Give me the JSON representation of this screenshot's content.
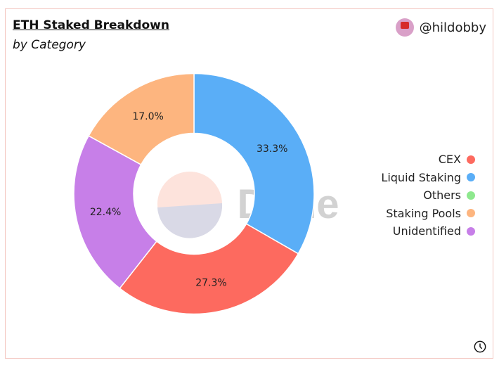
{
  "header": {
    "title": "ETH Staked Breakdown",
    "subtitle": "by Category",
    "author": "@hildobby"
  },
  "watermark": "Dune",
  "chart_data": {
    "type": "pie",
    "donut": true,
    "title": "ETH Staked Breakdown",
    "subtitle": "by Category",
    "legend_position": "right",
    "categories": [
      "CEX",
      "Liquid Staking",
      "Others",
      "Staking Pools",
      "Unidentified"
    ],
    "slices": [
      {
        "name": "Liquid Staking",
        "value": 33.3,
        "label": "33.3%",
        "color": "#5aaef7"
      },
      {
        "name": "CEX",
        "value": 27.3,
        "label": "27.3%",
        "color": "#fd6a5f"
      },
      {
        "name": "Unidentified",
        "value": 22.4,
        "label": "22.4%",
        "color": "#c77fe8"
      },
      {
        "name": "Staking Pools",
        "value": 17.0,
        "label": "17.0%",
        "color": "#fdb57f"
      },
      {
        "name": "Others",
        "value": 0.0,
        "label": "",
        "color": "#8ee88e"
      }
    ]
  },
  "legend": [
    {
      "label": "CEX",
      "color": "#fd6a5f"
    },
    {
      "label": "Liquid Staking",
      "color": "#5aaef7"
    },
    {
      "label": "Others",
      "color": "#8ee88e"
    },
    {
      "label": "Staking Pools",
      "color": "#fdb57f"
    },
    {
      "label": "Unidentified",
      "color": "#c77fe8"
    }
  ],
  "icons": {
    "history": "clock-icon"
  }
}
